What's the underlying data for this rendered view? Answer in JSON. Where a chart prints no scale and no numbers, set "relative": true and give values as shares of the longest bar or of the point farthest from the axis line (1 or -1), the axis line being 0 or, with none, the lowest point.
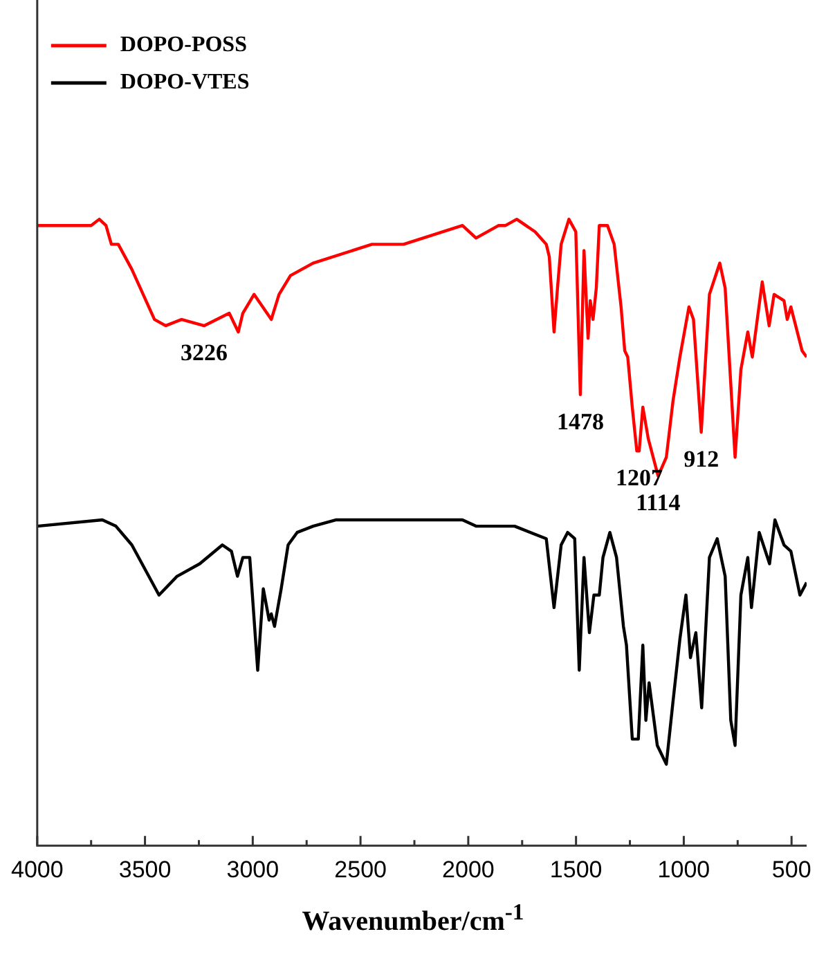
{
  "chart_data": {
    "type": "line",
    "relative": true,
    "xlabel": "Wavenumber/cm$^{-1}$",
    "xlim": [
      4000,
      430
    ],
    "xticks": [
      4000,
      {
        "value": 3750,
        "label": null
      },
      3500,
      {
        "value": 3250,
        "label": null
      },
      3000,
      {
        "value": 2750,
        "label": null
      },
      2500,
      {
        "value": 2250,
        "label": null
      },
      2000,
      {
        "value": 1750,
        "label": null
      },
      1500,
      {
        "value": 1250,
        "label": null
      },
      1000,
      {
        "value": 750,
        "label": null
      },
      500
    ],
    "grid": false,
    "legend": "top left",
    "marker": "none",
    "line_style": "solid",
    "series": [
      {
        "name": "DOPO-POSS",
        "color": "#ff0000",
        "x": [
          4000,
          3750,
          3712,
          3681,
          3656,
          3624,
          3561,
          3456,
          3404,
          3330,
          3226,
          3109,
          3067,
          3046,
          2994,
          2914,
          2878,
          2825,
          2720,
          2447,
          2300,
          2027,
          1964,
          1859,
          1827,
          1775,
          1690,
          1638,
          1624,
          1602,
          1586,
          1569,
          1533,
          1501,
          1480,
          1463,
          1444,
          1434,
          1421,
          1406,
          1392,
          1354,
          1323,
          1291,
          1274,
          1260,
          1239,
          1218,
          1207,
          1190,
          1165,
          1119,
          1081,
          1050,
          1018,
          976,
          955,
          919,
          881,
          833,
          808,
          762,
          735,
          703,
          682,
          636,
          604,
          581,
          535,
          520,
          503,
          451,
          430
        ],
        "values": [
          0.99,
          0.99,
          1.0,
          0.99,
          0.96,
          0.96,
          0.92,
          0.84,
          0.83,
          0.84,
          0.83,
          0.85,
          0.82,
          0.85,
          0.88,
          0.84,
          0.88,
          0.91,
          0.93,
          0.96,
          0.96,
          0.99,
          0.97,
          0.99,
          0.99,
          1.0,
          0.98,
          0.96,
          0.94,
          0.82,
          0.89,
          0.96,
          1.0,
          0.98,
          0.72,
          0.95,
          0.81,
          0.87,
          0.84,
          0.89,
          0.99,
          0.99,
          0.96,
          0.86,
          0.79,
          0.78,
          0.7,
          0.63,
          0.63,
          0.7,
          0.65,
          0.59,
          0.62,
          0.71,
          0.78,
          0.86,
          0.84,
          0.66,
          0.88,
          0.93,
          0.89,
          0.62,
          0.76,
          0.82,
          0.78,
          0.9,
          0.83,
          0.88,
          0.87,
          0.84,
          0.86,
          0.79,
          0.78
        ]
      },
      {
        "name": "DOPO-VTES",
        "color": "#000000",
        "x": [
          4000,
          3698,
          3635,
          3561,
          3498,
          3435,
          3351,
          3246,
          3141,
          3099,
          3071,
          3046,
          3014,
          2977,
          2951,
          2924,
          2914,
          2899,
          2868,
          2836,
          2794,
          2720,
          2615,
          2300,
          2258,
          2027,
          1964,
          1848,
          1785,
          1638,
          1602,
          1569,
          1539,
          1506,
          1485,
          1463,
          1438,
          1417,
          1392,
          1375,
          1343,
          1312,
          1280,
          1266,
          1239,
          1211,
          1190,
          1176,
          1161,
          1123,
          1081,
          1050,
          1018,
          990,
          969,
          944,
          917,
          881,
          845,
          808,
          782,
          762,
          735,
          703,
          686,
          650,
          602,
          577,
          535,
          503,
          461,
          430
        ],
        "values": [
          0.51,
          0.52,
          0.51,
          0.48,
          0.44,
          0.4,
          0.43,
          0.45,
          0.48,
          0.47,
          0.43,
          0.46,
          0.46,
          0.28,
          0.41,
          0.36,
          0.37,
          0.35,
          0.41,
          0.48,
          0.5,
          0.51,
          0.52,
          0.52,
          0.52,
          0.52,
          0.51,
          0.51,
          0.51,
          0.49,
          0.38,
          0.48,
          0.5,
          0.49,
          0.28,
          0.46,
          0.34,
          0.4,
          0.4,
          0.46,
          0.5,
          0.46,
          0.35,
          0.32,
          0.17,
          0.17,
          0.32,
          0.2,
          0.26,
          0.16,
          0.13,
          0.23,
          0.33,
          0.4,
          0.3,
          0.34,
          0.22,
          0.46,
          0.49,
          0.43,
          0.2,
          0.16,
          0.4,
          0.46,
          0.38,
          0.5,
          0.45,
          0.52,
          0.48,
          0.47,
          0.4,
          0.42
        ]
      }
    ],
    "annotations": [
      {
        "text": "3226",
        "x": 3226,
        "y": 0.83
      },
      {
        "text": "1478",
        "x": 1480,
        "y": 0.72
      },
      {
        "text": "1207",
        "x": 1207,
        "y": 0.63
      },
      {
        "text": "1114",
        "x": 1119,
        "y": 0.59
      },
      {
        "text": "912",
        "x": 919,
        "y": 0.66
      }
    ]
  }
}
